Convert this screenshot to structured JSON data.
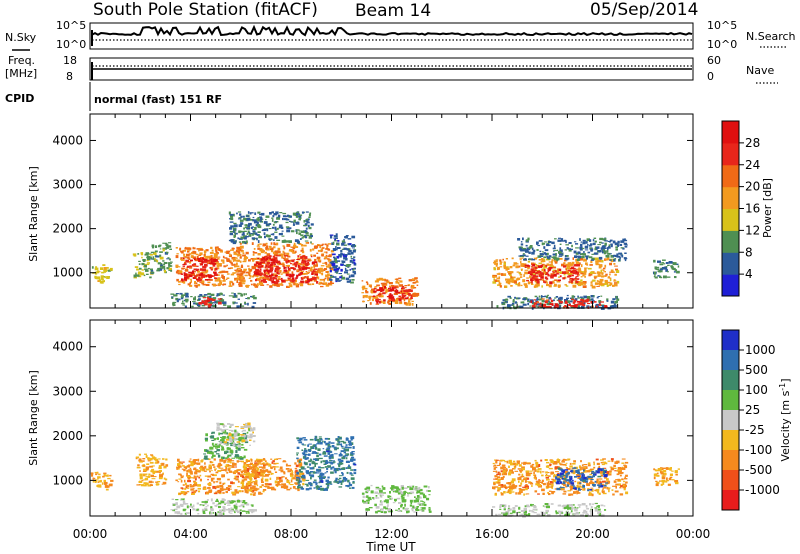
{
  "header": {
    "station": "South Pole Station (fitACF)",
    "beam": "Beam 14",
    "date": "05/Sep/2014"
  },
  "panels": {
    "noise": {
      "left_label": "N.Sky",
      "right_label": "N.Search",
      "left_ticks": [
        "10^5",
        "10^0"
      ],
      "right_ticks": [
        "10^5",
        "10^0"
      ]
    },
    "freq": {
      "left_label_line1": "Freq.",
      "left_label_line2": "[MHz]",
      "right_label": "Nave",
      "left_ticks": [
        "18",
        "8"
      ],
      "right_ticks": [
        "60",
        "0"
      ]
    },
    "cpid": {
      "label": "CPID",
      "value": "normal (fast) 151 RF"
    }
  },
  "axes": {
    "ylabel": "Slant Range [km]",
    "xlabel": "Time UT",
    "y_ticks": [
      "1000",
      "2000",
      "3000",
      "4000"
    ],
    "x_ticks": [
      "00:00",
      "04:00",
      "08:00",
      "12:00",
      "16:00",
      "20:00",
      "00:00"
    ]
  },
  "colorbars": {
    "power": {
      "label": "Power [dB]",
      "ticks": [
        "4",
        "8",
        "12",
        "16",
        "20",
        "24",
        "28"
      ],
      "colors": [
        "#1f1fd6",
        "#2b5a9a",
        "#4f8f52",
        "#d8c21a",
        "#f39a1f",
        "#f06a16",
        "#e8261b",
        "#e01010"
      ]
    },
    "velocity": {
      "label": "Velocity [m s",
      "label_sup": "-1",
      "label_end": "]",
      "ticks": [
        "1000",
        "500",
        "100",
        "25",
        "-25",
        "-100",
        "-500",
        "-1000"
      ],
      "colors": [
        "#1f2fc8",
        "#2f6fb0",
        "#3e8a6a",
        "#5fb83e",
        "#c8c8c8",
        "#f2b81e",
        "#f58a1e",
        "#f0501a",
        "#e81c1c"
      ]
    }
  },
  "chart_data": [
    {
      "type": "heatmap",
      "title": "",
      "quantity": "Power",
      "unit": "dB",
      "xlabel": "Time UT",
      "ylabel": "Slant Range [km]",
      "xlim": [
        0,
        24
      ],
      "ylim": [
        200,
        4600
      ],
      "clim": [
        0,
        32
      ],
      "patches": [
        {
          "t0": 0.0,
          "t1": 0.8,
          "r0": 800,
          "r1": 1200,
          "value": 14
        },
        {
          "t0": 1.7,
          "t1": 2.4,
          "r0": 900,
          "r1": 1500,
          "value": 12
        },
        {
          "t0": 2.4,
          "t1": 3.2,
          "r0": 1000,
          "r1": 1700,
          "value": 10
        },
        {
          "t0": 3.4,
          "t1": 6.0,
          "r0": 700,
          "r1": 1600,
          "value": 20
        },
        {
          "t0": 3.6,
          "t1": 5.0,
          "r0": 850,
          "r1": 1350,
          "value": 28
        },
        {
          "t0": 5.8,
          "t1": 9.6,
          "r0": 700,
          "r1": 1700,
          "value": 20
        },
        {
          "t0": 6.5,
          "t1": 9.0,
          "r0": 800,
          "r1": 1400,
          "value": 28
        },
        {
          "t0": 5.5,
          "t1": 8.8,
          "r0": 1700,
          "r1": 2400,
          "value": 8
        },
        {
          "t0": 9.5,
          "t1": 10.5,
          "r0": 800,
          "r1": 1900,
          "value": 6
        },
        {
          "t0": 3.2,
          "t1": 6.5,
          "r0": 250,
          "r1": 550,
          "value": 8
        },
        {
          "t0": 4.3,
          "t1": 5.2,
          "r0": 250,
          "r1": 450,
          "value": 26
        },
        {
          "t0": 10.8,
          "t1": 13.0,
          "r0": 300,
          "r1": 900,
          "value": 20
        },
        {
          "t0": 11.2,
          "t1": 12.8,
          "r0": 350,
          "r1": 700,
          "value": 28
        },
        {
          "t0": 16.0,
          "t1": 21.0,
          "r0": 700,
          "r1": 1350,
          "value": 18
        },
        {
          "t0": 17.3,
          "t1": 19.4,
          "r0": 800,
          "r1": 1200,
          "value": 27
        },
        {
          "t0": 17.0,
          "t1": 21.3,
          "r0": 1300,
          "r1": 1800,
          "value": 7
        },
        {
          "t0": 16.0,
          "t1": 21.0,
          "r0": 220,
          "r1": 500,
          "value": 8
        },
        {
          "t0": 17.5,
          "t1": 20.5,
          "r0": 230,
          "r1": 420,
          "value": 26
        },
        {
          "t0": 22.4,
          "t1": 23.4,
          "r0": 900,
          "r1": 1300,
          "value": 9
        }
      ]
    },
    {
      "type": "heatmap",
      "title": "",
      "quantity": "Velocity",
      "unit": "m s^-1",
      "xlabel": "Time UT",
      "ylabel": "Slant Range [km]",
      "xlim": [
        0,
        24
      ],
      "ylim": [
        200,
        4600
      ],
      "clim": [
        -1000,
        1000
      ],
      "patches": [
        {
          "t0": 0.0,
          "t1": 0.8,
          "r0": 800,
          "r1": 1200,
          "value": -300
        },
        {
          "t0": 1.8,
          "t1": 3.0,
          "r0": 900,
          "r1": 1600,
          "value": -300
        },
        {
          "t0": 3.4,
          "t1": 7.0,
          "r0": 700,
          "r1": 1500,
          "value": -400
        },
        {
          "t0": 4.5,
          "t1": 6.2,
          "r0": 1500,
          "r1": 2100,
          "value": 300
        },
        {
          "t0": 5.0,
          "t1": 6.5,
          "r0": 1800,
          "r1": 2300,
          "value": 0
        },
        {
          "t0": 6.0,
          "t1": 8.5,
          "r0": 800,
          "r1": 1500,
          "value": -400
        },
        {
          "t0": 8.2,
          "t1": 10.5,
          "r0": 800,
          "r1": 2000,
          "value": 600
        },
        {
          "t0": 3.2,
          "t1": 6.5,
          "r0": 250,
          "r1": 600,
          "value": 80
        },
        {
          "t0": 10.8,
          "t1": 13.5,
          "r0": 300,
          "r1": 900,
          "value": 150
        },
        {
          "t0": 16.0,
          "t1": 21.3,
          "r0": 700,
          "r1": 1500,
          "value": -400
        },
        {
          "t0": 18.5,
          "t1": 20.5,
          "r0": 800,
          "r1": 1300,
          "value": 700
        },
        {
          "t0": 16.0,
          "t1": 20.5,
          "r0": 220,
          "r1": 500,
          "value": 80
        },
        {
          "t0": 22.4,
          "t1": 23.4,
          "r0": 900,
          "r1": 1300,
          "value": -300
        }
      ]
    }
  ]
}
